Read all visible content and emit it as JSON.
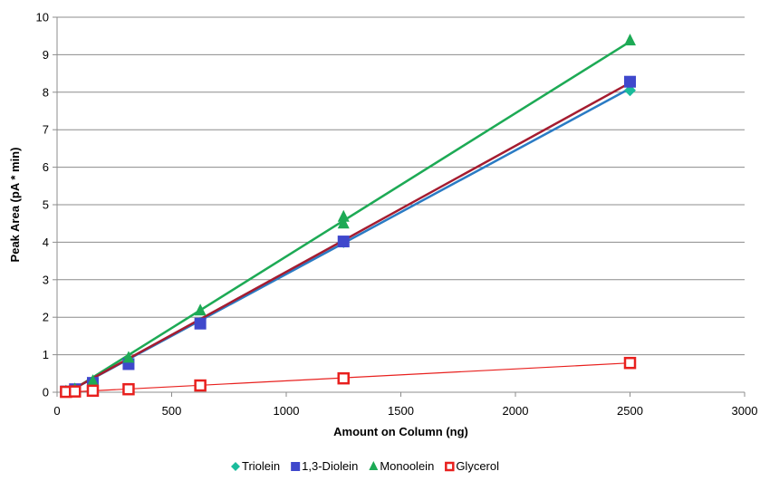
{
  "chart_data": {
    "type": "scatter",
    "title": "",
    "xlabel": "Amount on Column (ng)",
    "ylabel": "Peak Area (pA * min)",
    "xlim": [
      0,
      3000
    ],
    "ylim": [
      0,
      10
    ],
    "xticks": [
      0,
      500,
      1000,
      1500,
      2000,
      2500,
      3000
    ],
    "yticks": [
      0,
      1,
      2,
      3,
      4,
      5,
      6,
      7,
      8,
      9,
      10
    ],
    "grid": "horizontal",
    "legend_position": "bottom",
    "series": [
      {
        "name": "Triolein",
        "marker": "diamond",
        "color": "#1ABC9C",
        "line_color": "#2A7BC4",
        "x": [
          39,
          78,
          156,
          312,
          625,
          1250,
          2500
        ],
        "y": [
          0.02,
          0.08,
          0.25,
          0.8,
          1.85,
          4.0,
          8.05
        ],
        "trend": [
          [
            39,
            -0.02
          ],
          [
            2500,
            8.1
          ]
        ]
      },
      {
        "name": "1,3-Diolein",
        "marker": "square",
        "color": "#3F48CC",
        "line_color": "#A51C30",
        "x": [
          39,
          78,
          156,
          312,
          625,
          1250,
          2500
        ],
        "y": [
          0.02,
          0.08,
          0.25,
          0.75,
          1.83,
          4.02,
          8.28
        ],
        "trend": [
          [
            39,
            -0.02
          ],
          [
            2500,
            8.25
          ]
        ]
      },
      {
        "name": "Monoolein",
        "marker": "triangle",
        "color": "#1DAA55",
        "line_color": "#1DAA55",
        "x": [
          39,
          78,
          156,
          312,
          625,
          1250,
          1250,
          2500
        ],
        "y": [
          0.02,
          0.08,
          0.3,
          0.92,
          2.18,
          4.5,
          4.68,
          9.38
        ],
        "trend": [
          [
            39,
            -0.05
          ],
          [
            2500,
            9.35
          ]
        ]
      },
      {
        "name": "Glycerol",
        "marker": "square-open",
        "color": "#E8201E",
        "line_color": "#E8201E",
        "x": [
          39,
          78,
          156,
          312,
          625,
          1250,
          2500
        ],
        "y": [
          0.01,
          0.02,
          0.04,
          0.08,
          0.18,
          0.37,
          0.78
        ],
        "trend": [
          [
            39,
            0.0
          ],
          [
            2500,
            0.78
          ]
        ]
      }
    ]
  }
}
